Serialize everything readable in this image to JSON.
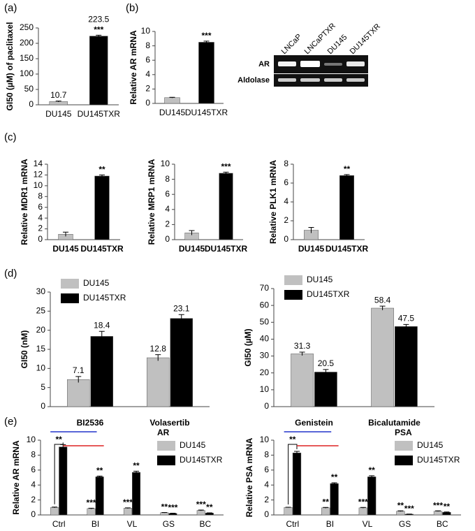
{
  "panel_labels": [
    "(a)",
    "(b)",
    "(c)",
    "(d)",
    "(e)"
  ],
  "gel": {
    "lanes": [
      "LNCaP",
      "LNCaPTXR",
      "DU145",
      "DU145TXR"
    ],
    "rows": [
      "AR",
      "Aldolase"
    ]
  },
  "chart_data": [
    {
      "type": "bar",
      "ylabel": "GI50 (µM) of paclitaxel",
      "categories": [
        "DU145",
        "DU145TXR"
      ],
      "values": [
        10.7,
        223.5
      ],
      "errors": [
        1.5,
        3
      ],
      "colors": [
        "#c0c0c0",
        "#000000"
      ],
      "annotations": [
        null,
        "***"
      ],
      "show_values": true,
      "ylim": [
        0,
        250
      ],
      "yticks": [
        0,
        50,
        100,
        150,
        200,
        250
      ]
    },
    {
      "type": "bar",
      "ylabel": "Relative AR mRNA",
      "categories": [
        "DU145",
        "DU145TXR"
      ],
      "values": [
        0.8,
        8.5
      ],
      "errors": [
        0.05,
        0.15
      ],
      "colors": [
        "#c0c0c0",
        "#000000"
      ],
      "annotations": [
        null,
        "***"
      ],
      "ylim": [
        0,
        10
      ],
      "yticks": [
        0,
        2,
        4,
        6,
        8,
        10
      ]
    },
    {
      "type": "bar",
      "ylabel": "Relative MDR1 mRNA",
      "categories": [
        "DU145",
        "DU145TXR"
      ],
      "values": [
        1.0,
        11.8
      ],
      "errors": [
        0.4,
        0.2
      ],
      "colors": [
        "#c0c0c0",
        "#000000"
      ],
      "annotations": [
        null,
        "**"
      ],
      "ylim": [
        0,
        14
      ],
      "yticks": [
        0,
        2,
        4,
        6,
        8,
        10,
        12,
        14
      ]
    },
    {
      "type": "bar",
      "ylabel": "Relative MRP1 mRNA",
      "categories": [
        "DU145",
        "DU145TXR"
      ],
      "values": [
        0.9,
        8.8
      ],
      "errors": [
        0.3,
        0.15
      ],
      "colors": [
        "#c0c0c0",
        "#000000"
      ],
      "annotations": [
        null,
        "***"
      ],
      "ylim": [
        0,
        10
      ],
      "yticks": [
        0,
        2,
        4,
        6,
        8,
        10
      ]
    },
    {
      "type": "bar",
      "ylabel": "Relative PLK1 mRNA",
      "categories": [
        "DU145",
        "DU145TXR"
      ],
      "values": [
        1.0,
        6.8
      ],
      "errors": [
        0.3,
        0.1
      ],
      "colors": [
        "#c0c0c0",
        "#000000"
      ],
      "annotations": [
        null,
        "**"
      ],
      "ylim": [
        0,
        8
      ],
      "yticks": [
        0,
        2,
        4,
        6,
        8
      ]
    },
    {
      "type": "bar",
      "ylabel": "GI50 (nM)",
      "categories": [
        "BI2536",
        "Volasertib"
      ],
      "series": [
        {
          "name": "DU145",
          "color": "#c0c0c0",
          "values": [
            7.1,
            12.8
          ],
          "errors": [
            0.8,
            0.8
          ]
        },
        {
          "name": "DU145TXR",
          "color": "#000000",
          "values": [
            18.4,
            23.1
          ],
          "errors": [
            1.3,
            1.0
          ]
        }
      ],
      "show_values": true,
      "legend": "upper left",
      "ylim": [
        0,
        30
      ],
      "yticks": [
        0,
        5,
        10,
        15,
        20,
        25,
        30
      ]
    },
    {
      "type": "bar",
      "ylabel": "GI50 (µM)",
      "categories": [
        "Genistein",
        "Bicalutamide"
      ],
      "series": [
        {
          "name": "DU145",
          "color": "#c0c0c0",
          "values": [
            31.3,
            58.4
          ],
          "errors": [
            1.0,
            1.2
          ]
        },
        {
          "name": "DU145TXR",
          "color": "#000000",
          "values": [
            20.5,
            47.5
          ],
          "errors": [
            1.5,
            1.2
          ]
        }
      ],
      "show_values": true,
      "legend": "upper left",
      "ylim": [
        0,
        70
      ],
      "yticks": [
        0,
        10,
        20,
        30,
        40,
        50,
        60,
        70
      ]
    },
    {
      "type": "bar",
      "title": "AR",
      "ylabel": "Relative AR mRNA",
      "categories": [
        "Ctrl",
        "BI",
        "VL",
        "GS",
        "BC"
      ],
      "series": [
        {
          "name": "DU145",
          "color": "#c0c0c0",
          "values": [
            1.0,
            0.85,
            0.9,
            0.3,
            0.6
          ],
          "errors": [
            0.05,
            0.05,
            0.05,
            0.03,
            0.05
          ],
          "annotations": [
            null,
            "***",
            "***",
            "**",
            "***"
          ],
          "annotation_color": "#2233cc"
        },
        {
          "name": "DU145TXR",
          "color": "#000000",
          "values": [
            9.1,
            5.1,
            5.7,
            0.2,
            0.25
          ],
          "errors": [
            0.3,
            0.1,
            0.15,
            0.03,
            0.03
          ],
          "annotations": [
            null,
            "**",
            "**",
            "***",
            "**"
          ],
          "annotation_color": "#dd2222"
        }
      ],
      "bracket_label": "**",
      "legend": "upper right",
      "ylim": [
        0,
        10
      ],
      "yticks": [
        0,
        2,
        4,
        6,
        8,
        10
      ]
    },
    {
      "type": "bar",
      "title": "PSA",
      "ylabel": "Relative PSA mRNA",
      "categories": [
        "Ctrl",
        "BI",
        "VL",
        "GS",
        "BC"
      ],
      "series": [
        {
          "name": "DU145",
          "color": "#c0c0c0",
          "values": [
            1.0,
            0.95,
            0.95,
            0.5,
            0.5
          ],
          "errors": [
            0.03,
            0.05,
            0.05,
            0.05,
            0.05
          ],
          "annotations": [
            null,
            "**",
            "***",
            "**",
            "***"
          ],
          "annotation_color": "#2233cc"
        },
        {
          "name": "DU145TXR",
          "color": "#000000",
          "values": [
            8.3,
            4.2,
            5.1,
            0.1,
            0.35
          ],
          "errors": [
            0.2,
            0.1,
            0.15,
            0.02,
            0.05
          ],
          "annotations": [
            null,
            "**",
            "**",
            "***",
            "**"
          ],
          "annotation_color": "#dd2222"
        }
      ],
      "bracket_label": "**",
      "legend": "upper right",
      "ylim": [
        0,
        10
      ],
      "yticks": [
        0,
        2,
        4,
        6,
        8,
        10
      ]
    }
  ]
}
